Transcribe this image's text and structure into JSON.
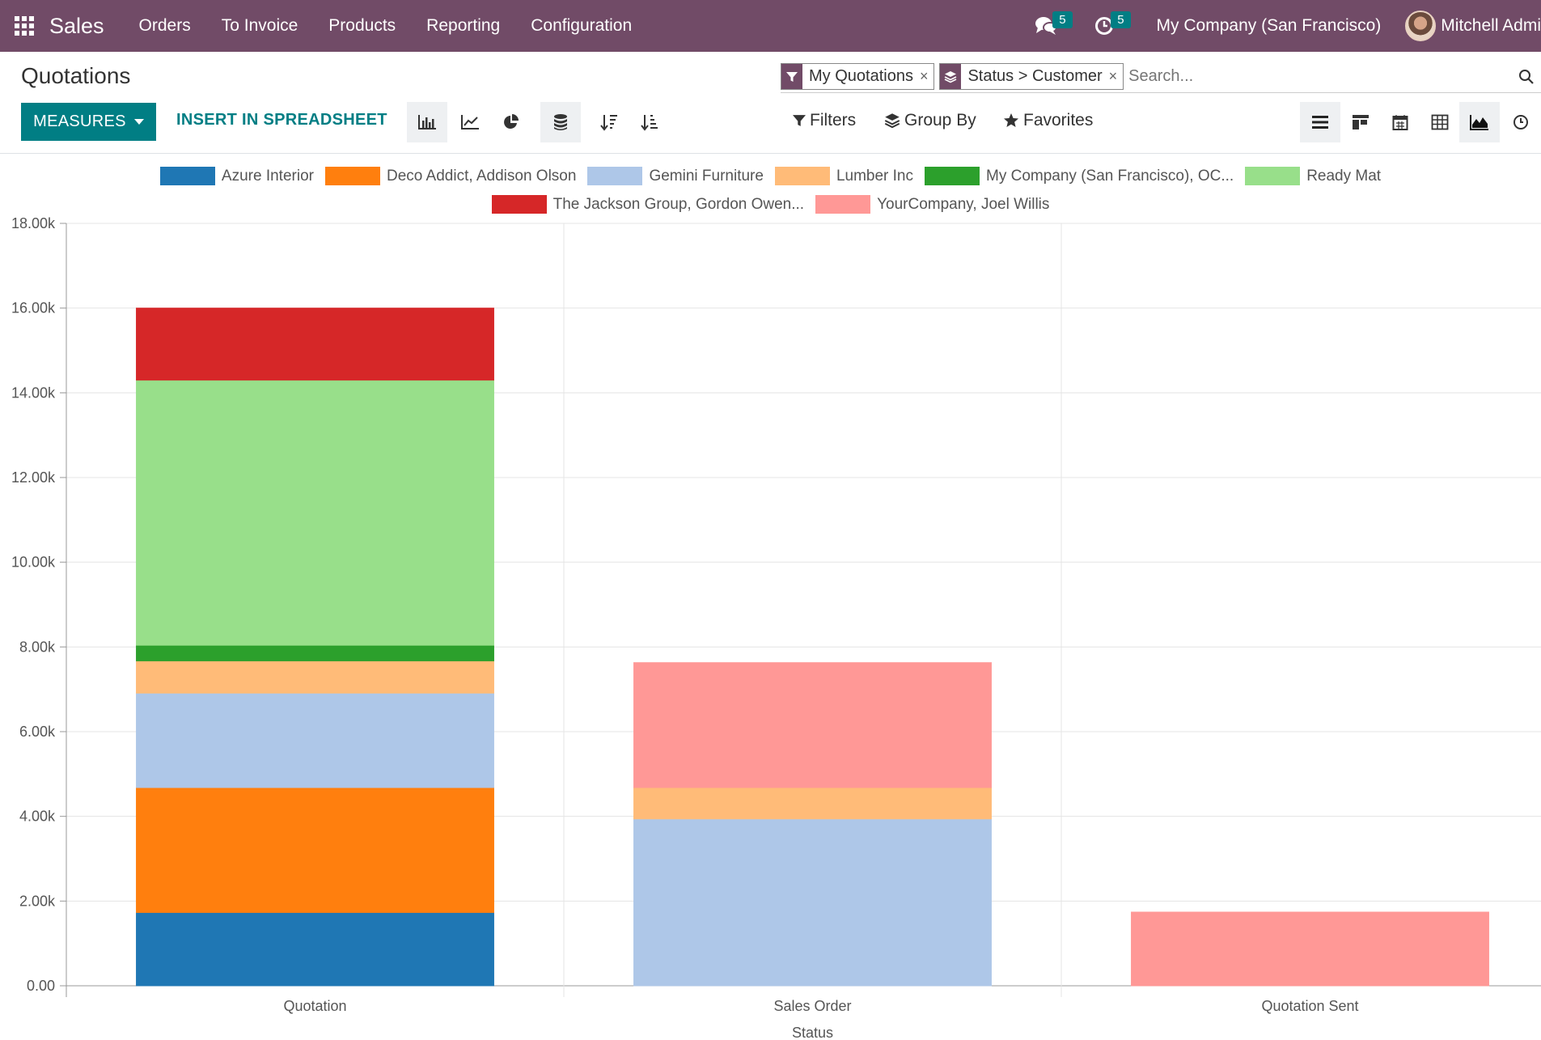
{
  "navbar": {
    "brand": "Sales",
    "menu": [
      "Orders",
      "To Invoice",
      "Products",
      "Reporting",
      "Configuration"
    ],
    "messages_count": "5",
    "activities_count": "5",
    "company": "My Company (San Francisco)",
    "user": "Mitchell Admi"
  },
  "control_panel": {
    "title": "Quotations",
    "facets": [
      {
        "icon": "filter-icon",
        "label": "My Quotations"
      },
      {
        "icon": "group-by-icon",
        "label": "Status > Customer"
      }
    ],
    "search_placeholder": "Search...",
    "measures_label": "MEASURES",
    "insert_label": "INSERT IN SPREADSHEET",
    "filters_label": "Filters",
    "group_by_label": "Group By",
    "favorites_label": "Favorites",
    "chart_modes": [
      "bar-chart-icon",
      "line-chart-icon",
      "pie-chart-icon",
      "stacked-icon",
      "sort-descending-icon",
      "sort-ascending-icon"
    ],
    "views": [
      "list-view-icon",
      "kanban-view-icon",
      "calendar-view-icon",
      "pivot-view-icon",
      "graph-view-icon",
      "activity-view-icon"
    ]
  },
  "colors": {
    "brand": "#714b67",
    "accent": "#017e84"
  },
  "chart_data": {
    "type": "bar",
    "stacked": true,
    "categories": [
      "Quotation",
      "Sales Order",
      "Quotation Sent"
    ],
    "xlabel": "Status",
    "ylabel": "",
    "ylim": [
      0,
      18000
    ],
    "ytick_labels": [
      "0.00",
      "2.00k",
      "4.00k",
      "6.00k",
      "8.00k",
      "10.00k",
      "12.00k",
      "14.00k",
      "16.00k",
      "18.00k"
    ],
    "grid": true,
    "legend": "top",
    "series": [
      {
        "name": "Azure Interior",
        "color": "#1f77b4",
        "values": [
          1730,
          0,
          0
        ]
      },
      {
        "name": "Deco Addict, Addison Olson",
        "color": "#ff7f0e",
        "values": [
          2950,
          0,
          0
        ]
      },
      {
        "name": "Gemini Furniture",
        "color": "#aec7e8",
        "values": [
          2230,
          3940,
          0
        ]
      },
      {
        "name": "Lumber Inc",
        "color": "#ffbb78",
        "values": [
          760,
          740,
          0
        ]
      },
      {
        "name": "My Company (San Francisco), OC...",
        "color": "#2ca02c",
        "values": [
          370,
          0,
          0
        ]
      },
      {
        "name": "Ready Mat",
        "color": "#98df8a",
        "values": [
          6260,
          0,
          0
        ]
      },
      {
        "name": "The Jackson Group, Gordon Owen...",
        "color": "#d62728",
        "values": [
          1700,
          0,
          0
        ]
      },
      {
        "name": "YourCompany, Joel Willis",
        "color": "#ff9896",
        "values": [
          0,
          2950,
          1740
        ]
      }
    ]
  }
}
